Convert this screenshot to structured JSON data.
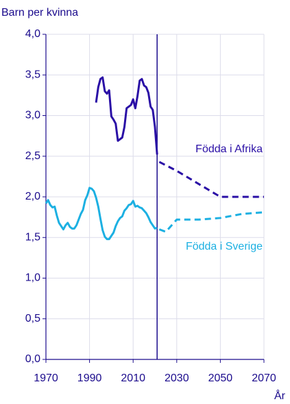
{
  "chart_data": {
    "type": "line",
    "ylabel": "Barn per kvinna",
    "xlabel": "År",
    "xlim": [
      1970,
      2070
    ],
    "xticks": [
      1970,
      1990,
      2010,
      2030,
      2050,
      2070
    ],
    "ylim": [
      0,
      4
    ],
    "yticks": [
      {
        "value": 0,
        "label": "0,0"
      },
      {
        "value": 0.5,
        "label": "0,5"
      },
      {
        "value": 1,
        "label": "1,0"
      },
      {
        "value": 1.5,
        "label": "1,5"
      },
      {
        "value": 2,
        "label": "2,0"
      },
      {
        "value": 2.5,
        "label": "2,5"
      },
      {
        "value": 3,
        "label": "3,0"
      },
      {
        "value": 3.5,
        "label": "3,5"
      },
      {
        "value": 4,
        "label": "4,0"
      }
    ],
    "grid": true,
    "vline": 2021,
    "series": [
      {
        "name": "Födda i Afrika",
        "color": "#2a0fa6",
        "x": [
          1993,
          1994,
          1995,
          1996,
          1997,
          1998,
          1999,
          2000,
          2001,
          2002,
          2003,
          2004,
          2005,
          2006,
          2007,
          2008,
          2009,
          2010,
          2011,
          2012,
          2013,
          2014,
          2015,
          2016,
          2017,
          2018,
          2019,
          2020,
          2021
        ],
        "values": [
          3.16,
          3.35,
          3.45,
          3.47,
          3.3,
          3.27,
          3.31,
          2.99,
          2.95,
          2.9,
          2.69,
          2.71,
          2.73,
          2.86,
          3.09,
          3.11,
          3.13,
          3.2,
          3.09,
          3.24,
          3.43,
          3.45,
          3.37,
          3.35,
          3.28,
          3.11,
          3.07,
          2.86,
          2.52
        ],
        "projection": {
          "x": [
            2022,
            2030,
            2040,
            2050,
            2060,
            2070
          ],
          "values": [
            2.43,
            2.32,
            2.16,
            2.0,
            2.0,
            2.0
          ]
        }
      },
      {
        "name": "Födda i Sverige",
        "color": "#1cb0e2",
        "x": [
          1970,
          1971,
          1972,
          1973,
          1974,
          1975,
          1976,
          1977,
          1978,
          1979,
          1980,
          1981,
          1982,
          1983,
          1984,
          1985,
          1986,
          1987,
          1988,
          1989,
          1990,
          1991,
          1992,
          1993,
          1994,
          1995,
          1996,
          1997,
          1998,
          1999,
          2000,
          2001,
          2002,
          2003,
          2004,
          2005,
          2006,
          2007,
          2008,
          2009,
          2010,
          2011,
          2012,
          2013,
          2014,
          2015,
          2016,
          2017,
          2018,
          2019,
          2020,
          2021
        ],
        "values": [
          1.92,
          1.96,
          1.9,
          1.87,
          1.88,
          1.77,
          1.68,
          1.64,
          1.6,
          1.65,
          1.68,
          1.63,
          1.61,
          1.61,
          1.65,
          1.72,
          1.79,
          1.84,
          1.96,
          2.02,
          2.11,
          2.1,
          2.07,
          1.99,
          1.88,
          1.73,
          1.59,
          1.51,
          1.48,
          1.48,
          1.52,
          1.56,
          1.64,
          1.7,
          1.74,
          1.76,
          1.83,
          1.86,
          1.9,
          1.91,
          1.95,
          1.88,
          1.89,
          1.87,
          1.86,
          1.83,
          1.8,
          1.75,
          1.69,
          1.65,
          1.61,
          1.62
        ],
        "projection": {
          "x": [
            2022,
            2025,
            2030,
            2040,
            2050,
            2060,
            2070
          ],
          "values": [
            1.6,
            1.57,
            1.72,
            1.72,
            1.74,
            1.79,
            1.81
          ]
        }
      }
    ]
  }
}
